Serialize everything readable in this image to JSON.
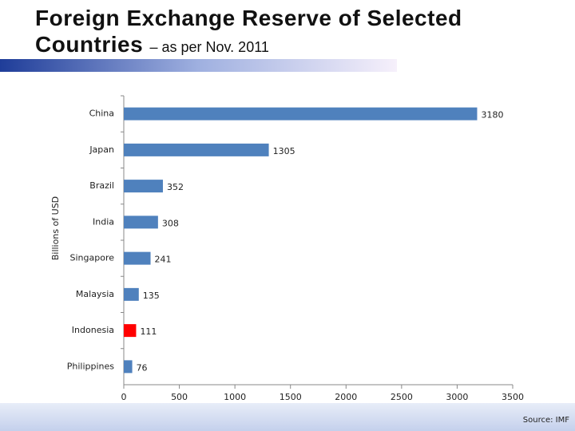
{
  "chart_data": {
    "type": "bar",
    "orientation": "horizontal",
    "title": "Foreign Exchange Reserve of Selected Countries",
    "subtitle": "– as per Nov. 2011",
    "y_label": "Billions of USD",
    "categories": [
      "China",
      "Japan",
      "Brazil",
      "India",
      "Singapore",
      "Malaysia",
      "Indonesia",
      "Philippines"
    ],
    "values": [
      3180,
      1305,
      352,
      308,
      241,
      135,
      111,
      76
    ],
    "colors": [
      "#4f81bd",
      "#4f81bd",
      "#4f81bd",
      "#4f81bd",
      "#4f81bd",
      "#4f81bd",
      "#ff0000",
      "#4f81bd"
    ],
    "xlim": [
      0,
      3500
    ],
    "xticks": [
      0,
      500,
      1000,
      1500,
      2000,
      2500,
      3000,
      3500
    ],
    "grid": false,
    "source": "Source: IMF"
  }
}
